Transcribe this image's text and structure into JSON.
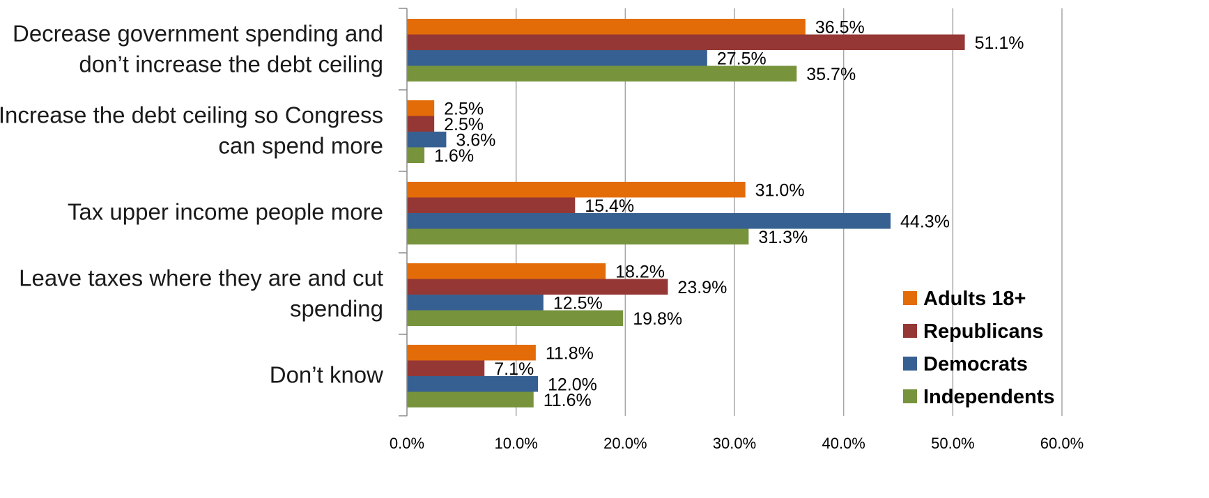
{
  "chart_data": {
    "type": "bar",
    "orientation": "horizontal",
    "title": "",
    "xlabel": "",
    "ylabel": "",
    "xlim": [
      0,
      60
    ],
    "x_ticks": [
      "0.0%",
      "10.0%",
      "20.0%",
      "30.0%",
      "40.0%",
      "50.0%",
      "60.0%"
    ],
    "grid": true,
    "legend_position": "bottom-right",
    "categories": [
      [
        "Decrease government spending and",
        "don’t increase the debt ceiling"
      ],
      [
        "Increase the debt ceiling so Congress",
        "can spend more"
      ],
      [
        "Tax upper income people more"
      ],
      [
        "Leave taxes where they are and cut",
        "spending"
      ],
      [
        "Don’t know"
      ]
    ],
    "series": [
      {
        "name": "Adults 18+",
        "color": "#E36C09",
        "values": [
          36.5,
          2.5,
          31.0,
          18.2,
          11.8
        ]
      },
      {
        "name": "Republicans",
        "color": "#953735",
        "values": [
          51.1,
          2.5,
          15.4,
          23.9,
          7.1
        ]
      },
      {
        "name": "Democrats",
        "color": "#376092",
        "values": [
          27.5,
          3.6,
          44.3,
          12.5,
          12.0
        ]
      },
      {
        "name": "Independents",
        "color": "#77933C",
        "values": [
          35.7,
          1.6,
          31.3,
          19.8,
          11.6
        ]
      }
    ]
  }
}
